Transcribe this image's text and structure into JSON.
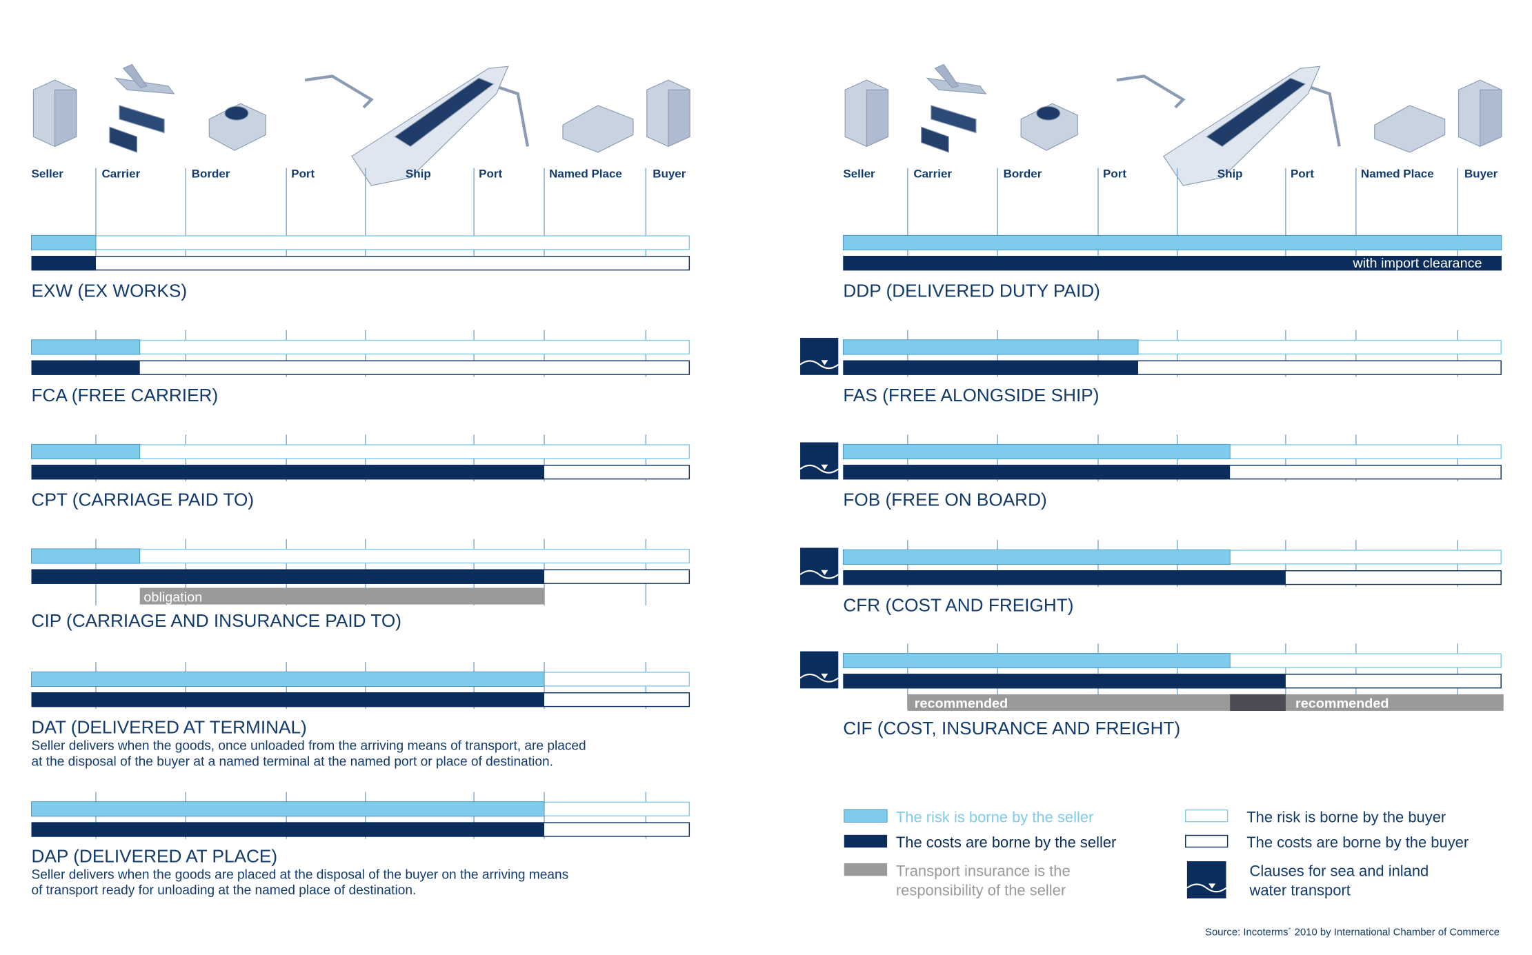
{
  "stages": [
    "Seller",
    "Carrier",
    "Border",
    "Port",
    "Ship",
    "Port",
    "Named Place",
    "Buyer"
  ],
  "terms": [
    {
      "title": "EXW (EX WORKS)"
    },
    {
      "title": "FCA (FREE CARRIER)"
    },
    {
      "title": "CPT (CARRIAGE PAID TO)"
    },
    {
      "title": "CIP (CARRIAGE AND INSURANCE PAID TO)",
      "insurance_label": "obligation"
    },
    {
      "title": "DAT (DELIVERED AT TERMINAL)",
      "description": [
        "Seller delivers when the goods, once unloaded from the arriving means of transport, are placed",
        "at the disposal of the buyer at a named terminal at the named port or place of destination."
      ]
    },
    {
      "title": "DAP (DELIVERED AT PLACE)",
      "description": [
        "Seller delivers when the goods are placed at the disposal of the buyer on the arriving means",
        "of transport ready for unloading at the named place of destination."
      ]
    },
    {
      "title": "DDP (DELIVERED DUTY PAID)",
      "cost_label": "with import clearance"
    },
    {
      "title": "FAS (FREE ALONGSIDE SHIP)"
    },
    {
      "title": "FOB (FREE ON BOARD)"
    },
    {
      "title": "CFR (COST AND FREIGHT)"
    },
    {
      "title": "CIF (COST, INSURANCE AND FREIGHT)",
      "insurance_labels": [
        "recommended",
        "recommended"
      ]
    }
  ],
  "legend": {
    "risk_seller": "The risk is borne by the seller",
    "cost_seller": "The costs are borne by the seller",
    "insurance": [
      "Transport insurance is the",
      "responsibility of the seller"
    ],
    "risk_buyer": "The risk is borne by the buyer",
    "cost_buyer": "The costs are borne by the buyer",
    "sea": [
      "Clauses for sea and inland",
      "water transport"
    ]
  },
  "source": "Source: Incoterms´ 2010 by International Chamber of Commerce"
}
